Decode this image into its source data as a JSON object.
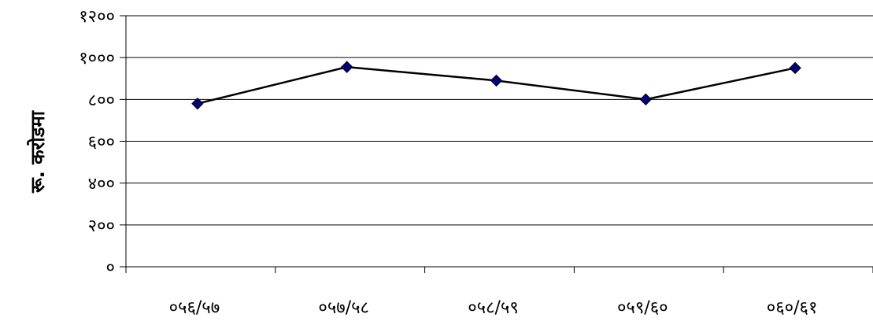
{
  "chart_data": {
    "type": "line",
    "title": "",
    "xlabel": "",
    "ylabel": "रू. करोडमा",
    "categories": [
      "०५६/५७",
      "०५७/५८",
      "०५८/५९",
      "०५९/६०",
      "०६०/६१"
    ],
    "x_tick_labels": [
      "०५६/५७",
      "०५७/५८",
      "०५८/५९",
      "०५९/६०",
      "०६०/६१"
    ],
    "y_tick_labels": [
      "०",
      "२००",
      "४००",
      "६००",
      "८००",
      "१०००",
      "१२००"
    ],
    "y_ticks": [
      0,
      200,
      400,
      600,
      800,
      1000,
      1200
    ],
    "ylim": [
      0,
      1200
    ],
    "grid": true,
    "legend": "none",
    "series": [
      {
        "values": [
          780,
          955,
          890,
          800,
          950
        ],
        "color": "#000000",
        "marker_color": "#000080"
      }
    ]
  }
}
